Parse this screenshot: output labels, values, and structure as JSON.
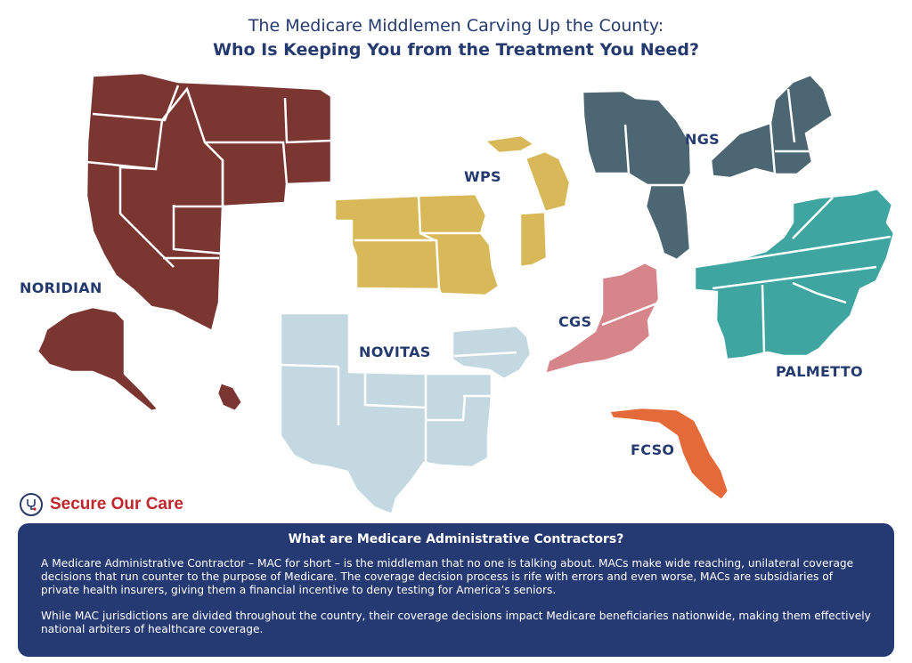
{
  "title": {
    "line1": "The Medicare Middlemen Carving Up the County:",
    "line2": "Who Is Keeping You from the Treatment You Need?"
  },
  "regions": {
    "noridian": {
      "label": "NORIDIAN",
      "color": "#7b3632"
    },
    "wps": {
      "label": "WPS",
      "color": "#d8b858"
    },
    "ngs": {
      "label": "NGS",
      "color": "#4d6673"
    },
    "cgs": {
      "label": "CGS",
      "color": "#d6868a"
    },
    "novitas": {
      "label": "NOVITAS",
      "color": "#c3d8e0"
    },
    "palmetto": {
      "label": "PALMETTO",
      "color": "#3ea5a0"
    },
    "fcso": {
      "label": "FCSO",
      "color": "#e56a3a"
    }
  },
  "brand": {
    "name": "Secure Our Care",
    "color": "#c0272d"
  },
  "info": {
    "heading": "What are Medicare Administrative Contractors?",
    "paragraph1": "A Medicare Administrative Contractor – MAC for short – is the middleman that no one is talking about. MACs make wide reaching, unilateral coverage decisions that run counter to the purpose of Medicare. The coverage decision process is rife with errors and even worse, MACs are subsidiaries of private health insurers, giving them a financial incentive to deny testing for America’s seniors.",
    "paragraph2": "While MAC jurisdictions are divided throughout the country, their coverage decisions impact Medicare beneficiaries nationwide, making them effectively national arbiters of healthcare coverage.",
    "background": "#253a72"
  }
}
